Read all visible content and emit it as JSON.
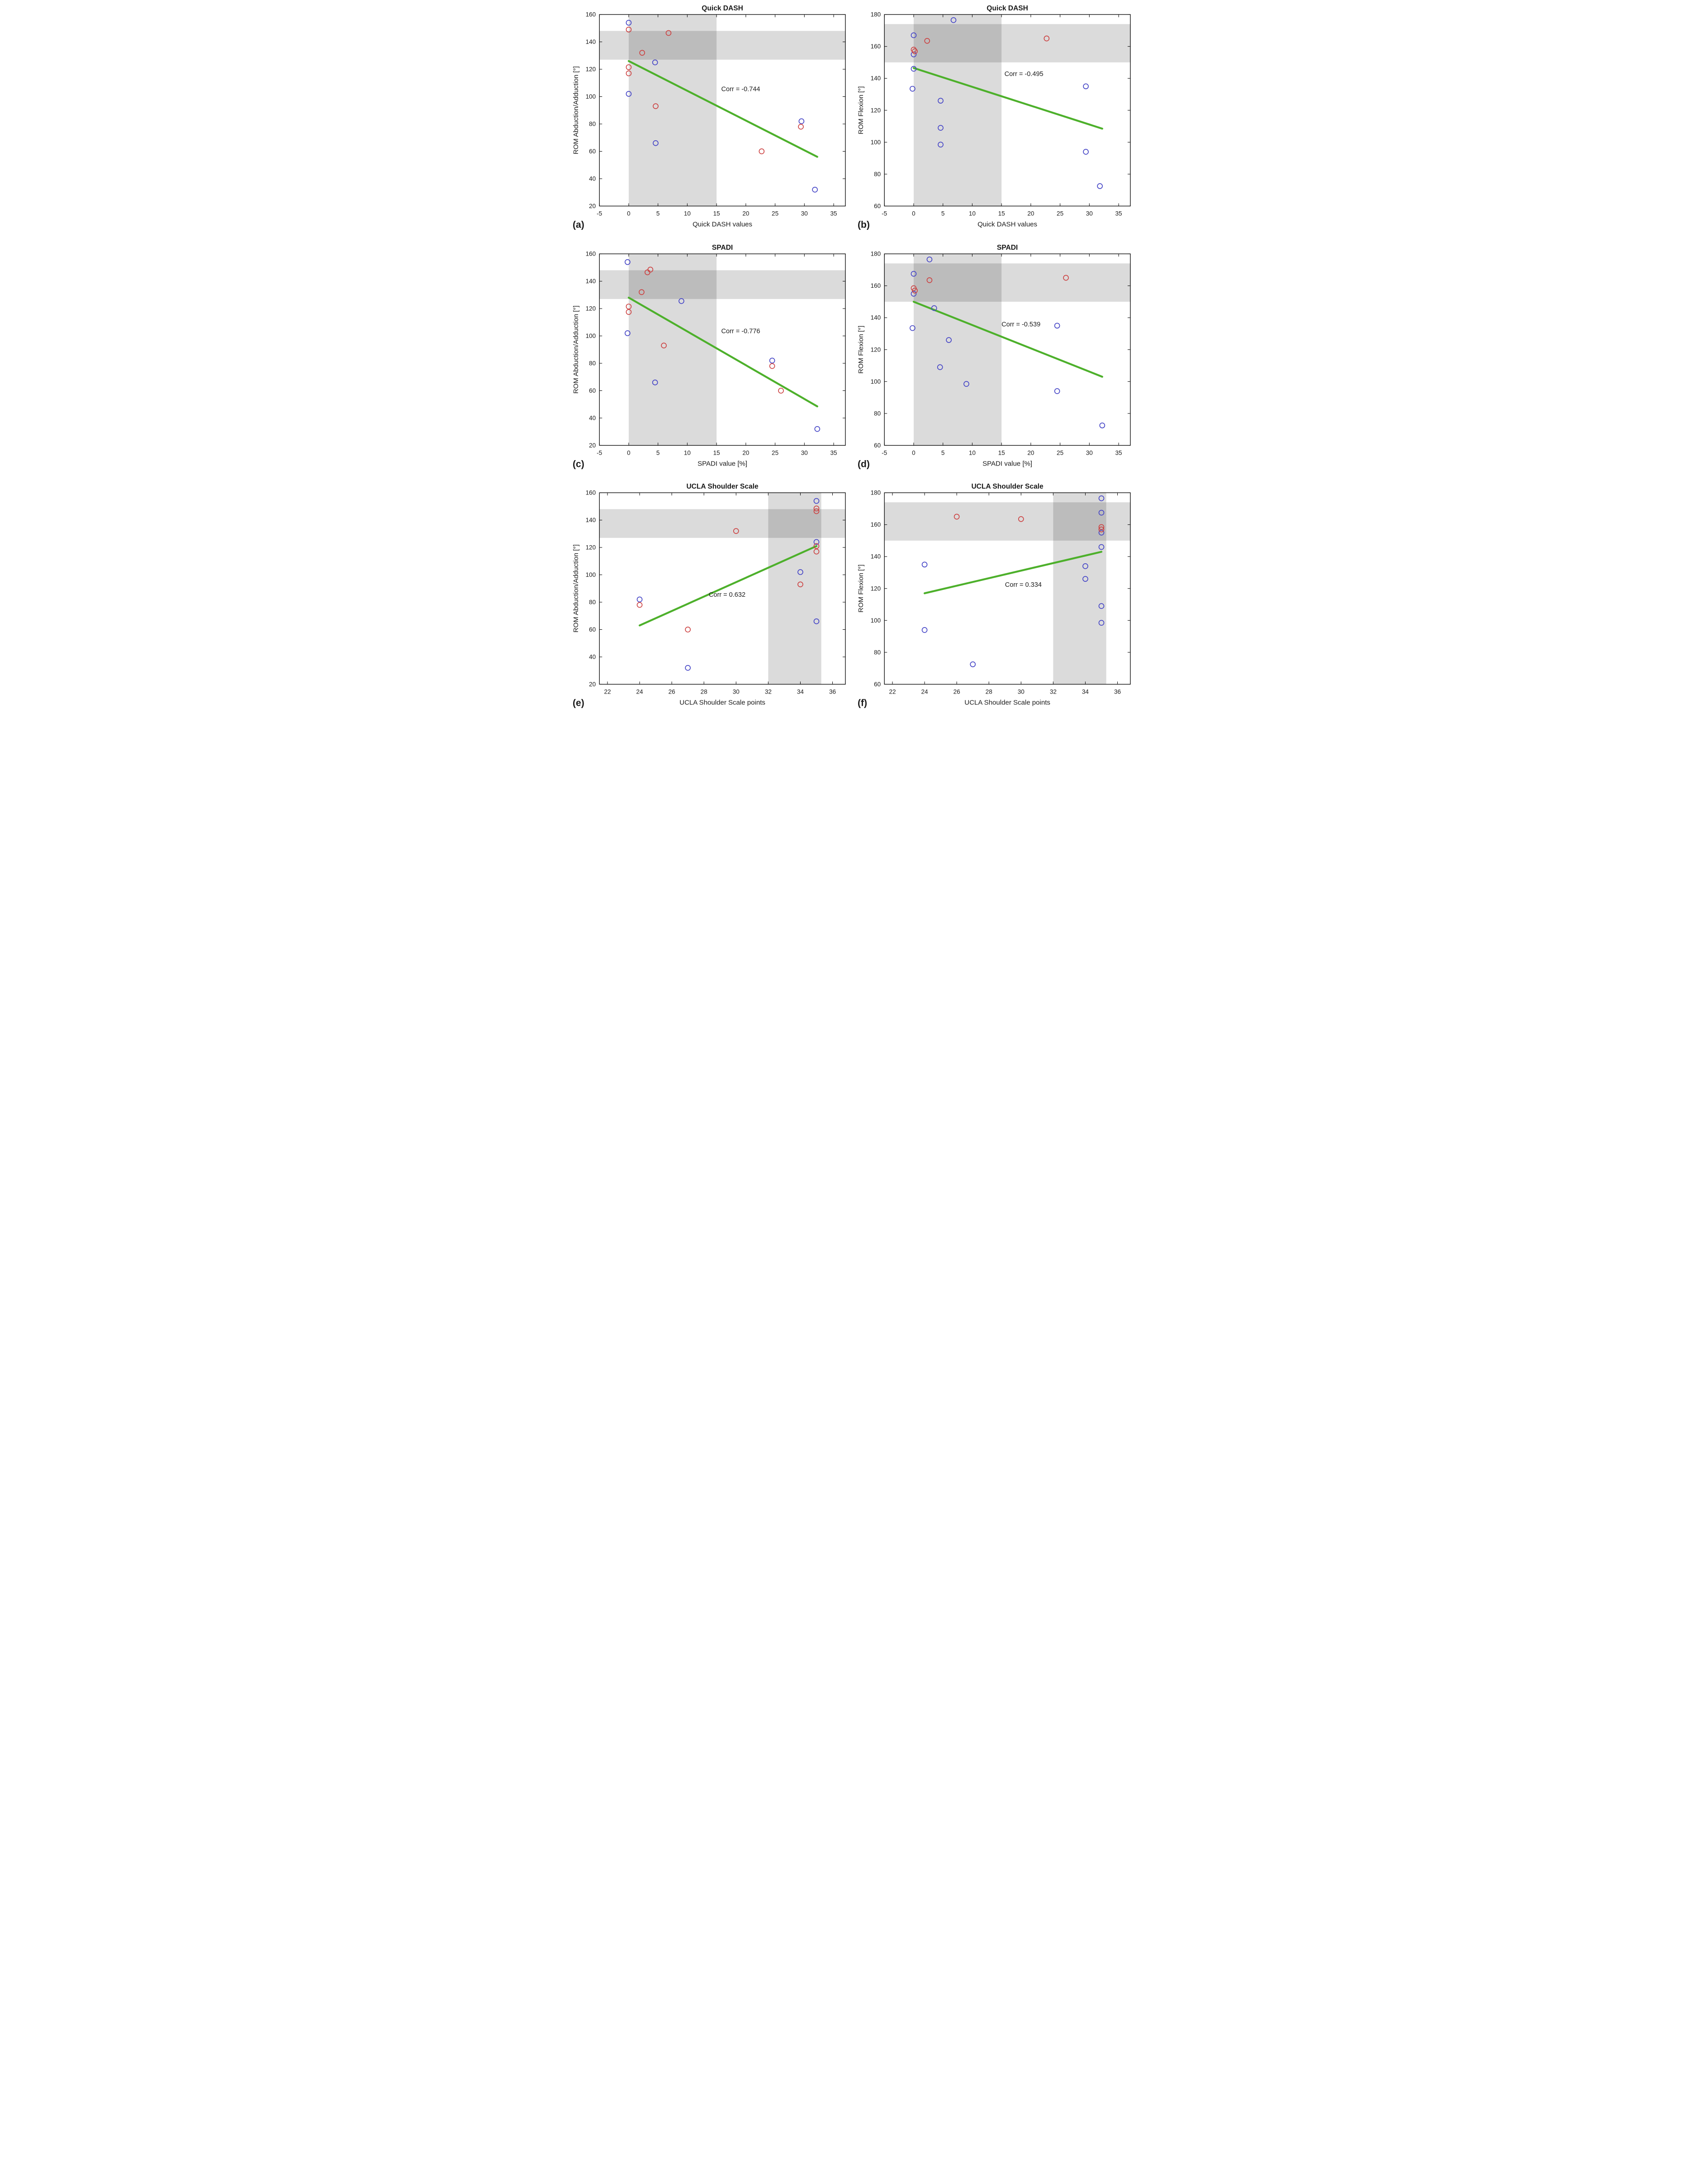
{
  "figure_name": "Correlation of clinical scores with shoulder range of motion",
  "style": {
    "marker_blue": "#4343c6",
    "marker_red": "#cc4040",
    "trend_green": "#4db02b",
    "band_fill": "rgba(0,0,0,0.14)",
    "axis_color": "#000000",
    "text_color": "#1a1a1a"
  },
  "chart_data": [
    {
      "type": "scatter",
      "panel_label": "(a)",
      "title": "Quick DASH",
      "xlabel": "Quick DASH values",
      "ylabel": "ROM Abduction/Adduction [°]",
      "xlim": [
        -5,
        37
      ],
      "ylim": [
        20,
        160
      ],
      "xticks": [
        -5,
        0,
        5,
        10,
        15,
        20,
        25,
        30,
        35
      ],
      "yticks": [
        20,
        40,
        60,
        80,
        100,
        120,
        140,
        160
      ],
      "reference_band_x": [
        0,
        15
      ],
      "reference_band_y": [
        127,
        148
      ],
      "trend_line": {
        "x1": 0,
        "y1": 126,
        "x2": 32.2,
        "y2": 56
      },
      "annotation": {
        "text": "Corr = -0.744",
        "x": 15.8,
        "y": 104
      },
      "series": [
        {
          "name": "blue-subjects",
          "color": "#4343c6",
          "points": [
            [
              0,
              154
            ],
            [
              0,
              102
            ],
            [
              4.5,
              125
            ],
            [
              4.6,
              66
            ],
            [
              29.5,
              82
            ],
            [
              31.8,
              32
            ]
          ]
        },
        {
          "name": "red-subjects",
          "color": "#cc4040",
          "points": [
            [
              0,
              149
            ],
            [
              0,
              121.5
            ],
            [
              0,
              117
            ],
            [
              2.3,
              132
            ],
            [
              6.8,
              146.5
            ],
            [
              4.6,
              93
            ],
            [
              22.7,
              60
            ],
            [
              29.4,
              78
            ]
          ]
        }
      ]
    },
    {
      "type": "scatter",
      "panel_label": "(b)",
      "title": "Quick DASH",
      "xlabel": "Quick DASH values",
      "ylabel": "ROM Flexion [°]",
      "xlim": [
        -5,
        37
      ],
      "ylim": [
        60,
        180
      ],
      "xticks": [
        -5,
        0,
        5,
        10,
        15,
        20,
        25,
        30,
        35
      ],
      "yticks": [
        60,
        80,
        100,
        120,
        140,
        160,
        180
      ],
      "reference_band_x": [
        0,
        15
      ],
      "reference_band_y": [
        150,
        174
      ],
      "trend_line": {
        "x1": 0,
        "y1": 146.5,
        "x2": 32.2,
        "y2": 108.5
      },
      "annotation": {
        "text": "Corr = -0.495",
        "x": 15.5,
        "y": 141.5
      },
      "series": [
        {
          "name": "blue-subjects",
          "color": "#4343c6",
          "points": [
            [
              0,
              167
            ],
            [
              0,
              155
            ],
            [
              0,
              146
            ],
            [
              -0.2,
              133.5
            ],
            [
              6.8,
              176.5
            ],
            [
              4.6,
              126
            ],
            [
              4.6,
              109
            ],
            [
              4.6,
              98.5
            ],
            [
              29.4,
              135
            ],
            [
              29.4,
              94
            ],
            [
              31.8,
              72.5
            ]
          ]
        },
        {
          "name": "red-subjects",
          "color": "#cc4040",
          "points": [
            [
              0,
              158
            ],
            [
              0.2,
              157
            ],
            [
              2.3,
              163.5
            ],
            [
              22.7,
              165
            ]
          ]
        }
      ]
    },
    {
      "type": "scatter",
      "panel_label": "(c)",
      "title": "SPADI",
      "xlabel": "SPADI value [%]",
      "ylabel": "ROM Abduction/Adduction [°]",
      "xlim": [
        -5,
        37
      ],
      "ylim": [
        20,
        160
      ],
      "xticks": [
        -5,
        0,
        5,
        10,
        15,
        20,
        25,
        30,
        35
      ],
      "yticks": [
        20,
        40,
        60,
        80,
        100,
        120,
        140,
        160
      ],
      "reference_band_x": [
        0,
        15
      ],
      "reference_band_y": [
        127,
        148
      ],
      "trend_line": {
        "x1": 0,
        "y1": 128,
        "x2": 32.2,
        "y2": 48.5
      },
      "annotation": {
        "text": "Corr = -0.776",
        "x": 15.8,
        "y": 102
      },
      "series": [
        {
          "name": "blue-subjects",
          "color": "#4343c6",
          "points": [
            [
              -0.2,
              154
            ],
            [
              -0.2,
              102
            ],
            [
              9,
              125.5
            ],
            [
              4.5,
              66
            ],
            [
              24.5,
              82
            ],
            [
              32.2,
              32
            ]
          ]
        },
        {
          "name": "red-subjects",
          "color": "#cc4040",
          "points": [
            [
              3.7,
              148.5
            ],
            [
              3.2,
              146.5
            ],
            [
              2.2,
              132
            ],
            [
              0,
              121.5
            ],
            [
              0,
              117.5
            ],
            [
              6,
              93
            ],
            [
              26,
              60
            ],
            [
              24.5,
              78
            ]
          ]
        }
      ]
    },
    {
      "type": "scatter",
      "panel_label": "(d)",
      "title": "SPADI",
      "xlabel": "SPADI value [%]",
      "ylabel": "ROM Flexion [°]",
      "xlim": [
        -5,
        37
      ],
      "ylim": [
        60,
        180
      ],
      "xticks": [
        -5,
        0,
        5,
        10,
        15,
        20,
        25,
        30,
        35
      ],
      "yticks": [
        60,
        80,
        100,
        120,
        140,
        160,
        180
      ],
      "reference_band_x": [
        0,
        15
      ],
      "reference_band_y": [
        150,
        174
      ],
      "trend_line": {
        "x1": 0,
        "y1": 150,
        "x2": 32.2,
        "y2": 103
      },
      "annotation": {
        "text": "Corr = -0.539",
        "x": 15,
        "y": 134.5
      },
      "series": [
        {
          "name": "blue-subjects",
          "color": "#4343c6",
          "points": [
            [
              0,
              167.5
            ],
            [
              0,
              155
            ],
            [
              -0.2,
              133.5
            ],
            [
              2.7,
              176.5
            ],
            [
              3.5,
              146
            ],
            [
              6,
              126
            ],
            [
              4.5,
              109
            ],
            [
              9,
              98.5
            ],
            [
              24.5,
              135
            ],
            [
              24.5,
              94
            ],
            [
              32.2,
              72.5
            ]
          ]
        },
        {
          "name": "red-subjects",
          "color": "#cc4040",
          "points": [
            [
              0,
              158.5
            ],
            [
              0.2,
              157
            ],
            [
              2.7,
              163.5
            ],
            [
              26,
              165
            ]
          ]
        }
      ]
    },
    {
      "type": "scatter",
      "panel_label": "(e)",
      "title": "UCLA Shoulder Scale",
      "xlabel": "UCLA Shoulder Scale points",
      "ylabel": "ROM Abduction/Adduction [°]",
      "xlim": [
        21.5,
        36.8
      ],
      "ylim": [
        20,
        160
      ],
      "xticks": [
        22,
        24,
        26,
        28,
        30,
        32,
        34,
        36
      ],
      "yticks": [
        20,
        40,
        60,
        80,
        100,
        120,
        140,
        160
      ],
      "reference_band_x": [
        32,
        35.3
      ],
      "reference_band_y": [
        127,
        148
      ],
      "trend_line": {
        "x1": 24,
        "y1": 63,
        "x2": 35,
        "y2": 121
      },
      "annotation": {
        "text": "Corr = 0.632",
        "x": 28.3,
        "y": 84
      },
      "series": [
        {
          "name": "blue-subjects",
          "color": "#4343c6",
          "points": [
            [
              24,
              82
            ],
            [
              27,
              32
            ],
            [
              34,
              102
            ],
            [
              35,
              154
            ],
            [
              35,
              124
            ],
            [
              35,
              66
            ]
          ]
        },
        {
          "name": "red-subjects",
          "color": "#cc4040",
          "points": [
            [
              24,
              78
            ],
            [
              27,
              60
            ],
            [
              30,
              132
            ],
            [
              34,
              93
            ],
            [
              35,
              148.5
            ],
            [
              35,
              146.5
            ],
            [
              35,
              121
            ],
            [
              35,
              117
            ]
          ]
        }
      ]
    },
    {
      "type": "scatter",
      "panel_label": "(f)",
      "title": "UCLA Shoulder Scale",
      "xlabel": "UCLA Shoulder Scale points",
      "ylabel": "ROM Flexion [°]",
      "xlim": [
        21.5,
        36.8
      ],
      "ylim": [
        60,
        180
      ],
      "xticks": [
        22,
        24,
        26,
        28,
        30,
        32,
        34,
        36
      ],
      "yticks": [
        60,
        80,
        100,
        120,
        140,
        160,
        180
      ],
      "reference_band_x": [
        32,
        35.3
      ],
      "reference_band_y": [
        150,
        174
      ],
      "trend_line": {
        "x1": 24,
        "y1": 117,
        "x2": 35,
        "y2": 143
      },
      "annotation": {
        "text": "Corr = 0.334",
        "x": 29,
        "y": 121
      },
      "series": [
        {
          "name": "blue-subjects",
          "color": "#4343c6",
          "points": [
            [
              24,
              135
            ],
            [
              24,
              94
            ],
            [
              27,
              72.5
            ],
            [
              34,
              134
            ],
            [
              34,
              126
            ],
            [
              35,
              176.5
            ],
            [
              35,
              167.5
            ],
            [
              35,
              155
            ],
            [
              35,
              146
            ],
            [
              35,
              109
            ],
            [
              35,
              98.5
            ]
          ]
        },
        {
          "name": "red-subjects",
          "color": "#cc4040",
          "points": [
            [
              26,
              165
            ],
            [
              30,
              163.5
            ],
            [
              35,
              158.5
            ],
            [
              35,
              157
            ]
          ]
        }
      ]
    }
  ]
}
